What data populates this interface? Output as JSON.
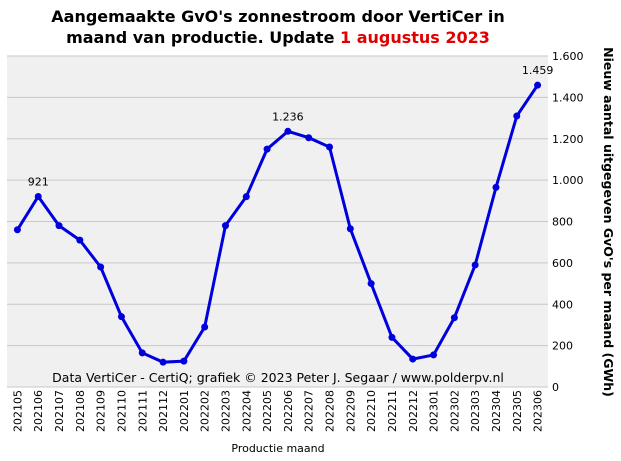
{
  "chart_data": {
    "type": "line",
    "title": [
      "Aangemaakte GvO's zonnestroom door VertiCer in",
      "maand van productie. Update"
    ],
    "title_update": "1 augustus 2023",
    "x_label": "Productie maand",
    "y_label": "Nieuw aantal uitgegeven GvO's per maand (GWh)",
    "annotation": "Data VertiCer - CertiQ; grafiek © 2023 Peter J. Segaar / www.polderpv.nl",
    "categories": [
      "202105",
      "202106",
      "202107",
      "202108",
      "202109",
      "202110",
      "202111",
      "202112",
      "202201",
      "202202",
      "202203",
      "202204",
      "202205",
      "202206",
      "202207",
      "202208",
      "202209",
      "202210",
      "202211",
      "202212",
      "202301",
      "202302",
      "202303",
      "202304",
      "202305",
      "202306"
    ],
    "series": [
      {
        "name": "GvO's",
        "color": "#0000dd",
        "values": [
          760,
          921,
          780,
          710,
          580,
          340,
          165,
          120,
          125,
          290,
          780,
          920,
          1150,
          1236,
          1205,
          1160,
          765,
          500,
          240,
          135,
          155,
          335,
          590,
          965,
          1310,
          1459
        ],
        "value_labels": [
          null,
          "921",
          null,
          null,
          null,
          null,
          null,
          null,
          null,
          null,
          null,
          null,
          null,
          "1.236",
          null,
          null,
          null,
          null,
          null,
          null,
          null,
          null,
          null,
          null,
          null,
          "1.459"
        ]
      }
    ],
    "ylim": [
      0,
      1600
    ],
    "yticks": [
      0,
      200,
      400,
      600,
      800,
      {
        "value": 1000,
        "label": "1.000"
      },
      {
        "value": 1200,
        "label": "1.200"
      },
      {
        "value": 1400,
        "label": "1.400"
      },
      {
        "value": 1600,
        "label": "1.600"
      }
    ],
    "grid": true
  }
}
